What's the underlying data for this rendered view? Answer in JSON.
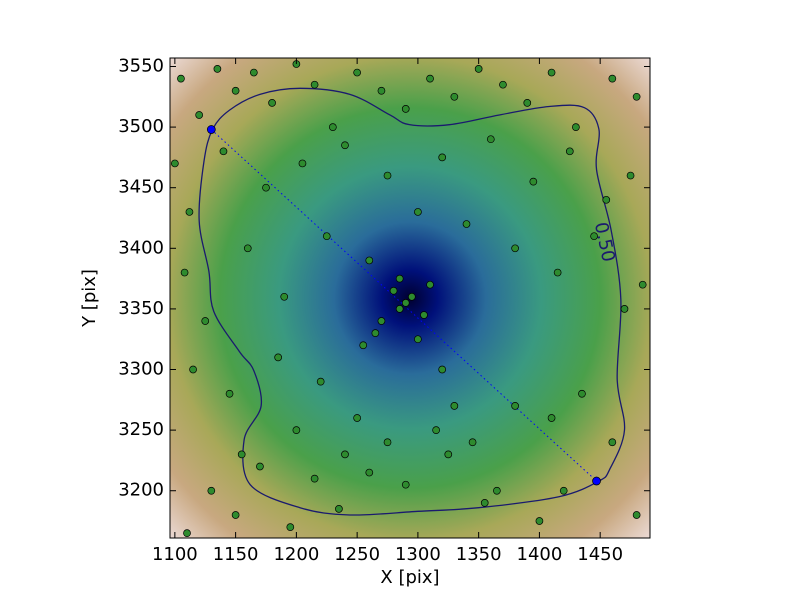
{
  "chart_data": {
    "type": "scatter",
    "xlabel": "X [pix]",
    "ylabel": "Y [pix]",
    "xlim": [
      1096,
      1491
    ],
    "ylim": [
      3161,
      3557
    ],
    "xticks": [
      1100,
      1150,
      1200,
      1250,
      1300,
      1350,
      1400,
      1450
    ],
    "yticks": [
      3200,
      3250,
      3300,
      3350,
      3400,
      3450,
      3500,
      3550
    ],
    "points": {
      "color": "#2e8b2e",
      "x": [
        1105,
        1120,
        1135,
        1150,
        1165,
        1180,
        1200,
        1215,
        1230,
        1250,
        1270,
        1290,
        1310,
        1330,
        1350,
        1370,
        1390,
        1410,
        1430,
        1460,
        1480,
        1100,
        1112,
        1140,
        1175,
        1205,
        1240,
        1275,
        1320,
        1360,
        1395,
        1425,
        1455,
        1475,
        1108,
        1125,
        1160,
        1190,
        1225,
        1260,
        1300,
        1340,
        1380,
        1415,
        1445,
        1470,
        1485,
        1115,
        1145,
        1185,
        1220,
        1255,
        1285,
        1295,
        1305,
        1280,
        1290,
        1270,
        1310,
        1265,
        1300,
        1285,
        1320,
        1250,
        1330,
        1240,
        1345,
        1200,
        1380,
        1170,
        1410,
        1155,
        1435,
        1130,
        1460,
        1215,
        1365,
        1235,
        1355,
        1195,
        1400,
        1150,
        1420,
        1110,
        1480,
        1260,
        1325,
        1290,
        1275,
        1315
      ],
      "y": [
        3540,
        3510,
        3548,
        3530,
        3545,
        3520,
        3552,
        3535,
        3500,
        3545,
        3530,
        3515,
        3540,
        3525,
        3548,
        3535,
        3520,
        3545,
        3500,
        3540,
        3525,
        3470,
        3430,
        3480,
        3450,
        3470,
        3485,
        3460,
        3475,
        3490,
        3455,
        3480,
        3440,
        3460,
        3380,
        3340,
        3400,
        3360,
        3410,
        3390,
        3430,
        3420,
        3400,
        3380,
        3410,
        3350,
        3370,
        3300,
        3280,
        3310,
        3290,
        3320,
        3350,
        3360,
        3345,
        3365,
        3355,
        3340,
        3370,
        3330,
        3325,
        3375,
        3300,
        3260,
        3270,
        3230,
        3240,
        3250,
        3270,
        3220,
        3260,
        3230,
        3280,
        3200,
        3240,
        3210,
        3200,
        3185,
        3190,
        3170,
        3175,
        3180,
        3200,
        3165,
        3180,
        3215,
        3230,
        3205,
        3240,
        3250
      ]
    },
    "endpoints": {
      "color": "#0000ff",
      "x": [
        1130,
        1447
      ],
      "y": [
        3498,
        3208
      ]
    },
    "contour": {
      "color": "#1a1a6e",
      "label": "0.50",
      "label_x": 1453,
      "label_y": 3405,
      "x": [
        1131,
        1145,
        1170,
        1203,
        1244,
        1277,
        1293,
        1326,
        1367,
        1408,
        1437,
        1449,
        1447,
        1459,
        1467,
        1464,
        1470,
        1458,
        1449,
        1416,
        1350,
        1300,
        1244,
        1203,
        1162,
        1157,
        1171,
        1165,
        1153,
        1132,
        1128,
        1120,
        1124
      ],
      "y": [
        3498,
        3514,
        3527,
        3532,
        3527,
        3510,
        3502,
        3502,
        3510,
        3517,
        3516,
        3498,
        3465,
        3415,
        3358,
        3292,
        3250,
        3218,
        3208,
        3195,
        3186,
        3183,
        3180,
        3186,
        3205,
        3242,
        3270,
        3299,
        3315,
        3348,
        3381,
        3423,
        3472
      ]
    }
  }
}
